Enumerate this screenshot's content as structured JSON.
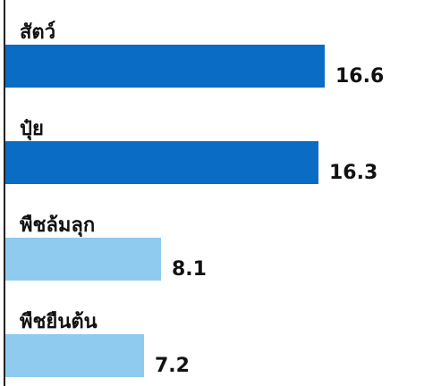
{
  "chart_data": {
    "type": "bar",
    "orientation": "horizontal",
    "categories": [
      "สัตว์",
      "ปุ๋ย",
      "พืชล้มลุก",
      "พืชยืนต้น"
    ],
    "values": [
      16.6,
      16.3,
      8.1,
      7.2
    ],
    "value_labels": [
      "16.6",
      "16.3",
      "8.1",
      "7.2"
    ],
    "bar_colors": [
      "#0a6cc4",
      "#0a6cc4",
      "#8fcbef",
      "#8fcbef"
    ],
    "xlim": [
      0,
      18.8
    ],
    "title": "",
    "xlabel": "",
    "ylabel": "",
    "grid": false
  }
}
